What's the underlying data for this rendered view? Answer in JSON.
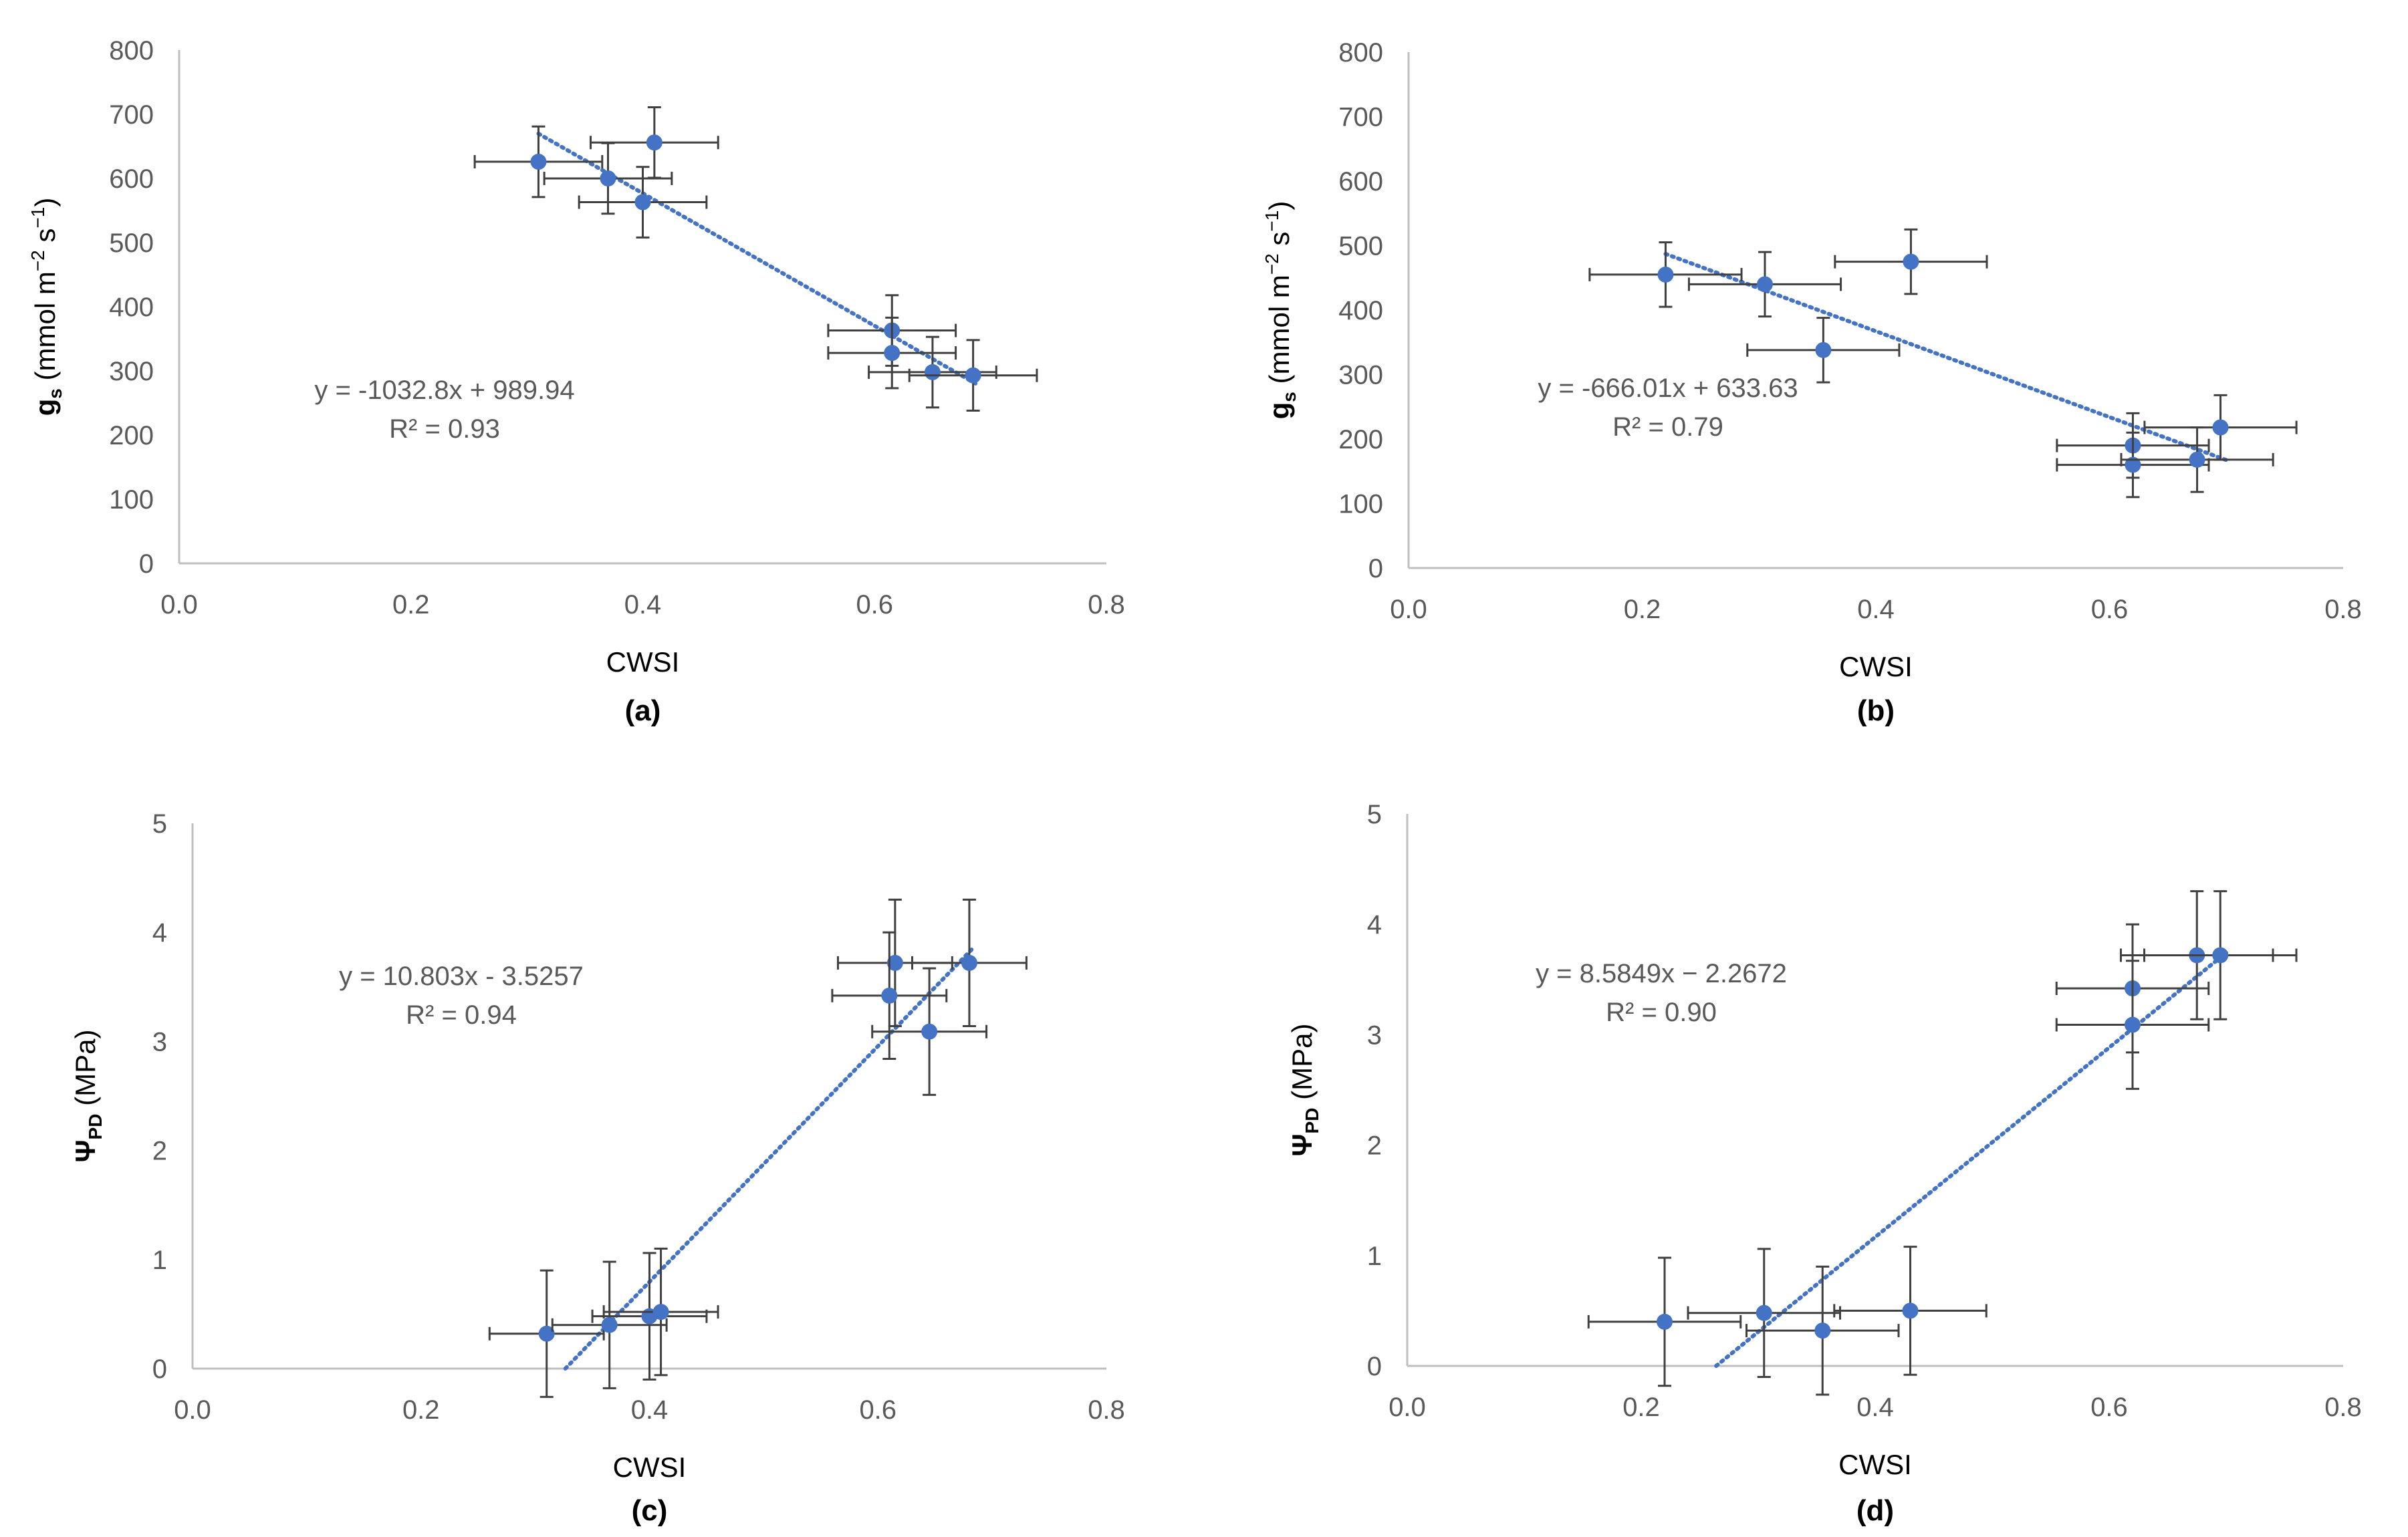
{
  "chart_data": [
    {
      "type": "scatter",
      "panel_label": "(a)",
      "xlabel": "CWSI",
      "ylabel": {
        "main": "g",
        "sub": "s",
        "units_open": " (mmol m",
        "units_exp1": "−2",
        "units_mid": " s",
        "units_exp2": "−1",
        "units_close": ")"
      },
      "xlim": [
        0.0,
        0.8
      ],
      "ylim": [
        0,
        800
      ],
      "xticks": [
        "0.0",
        "0.2",
        "0.4",
        "0.6",
        "0.8"
      ],
      "yticks": [
        "0",
        "100",
        "200",
        "300",
        "400",
        "500",
        "600",
        "700",
        "800"
      ],
      "points": [
        {
          "x": 0.31,
          "y": 626,
          "xerr": 0.055,
          "yerr": 55
        },
        {
          "x": 0.37,
          "y": 600,
          "xerr": 0.055,
          "yerr": 55
        },
        {
          "x": 0.41,
          "y": 656,
          "xerr": 0.055,
          "yerr": 55
        },
        {
          "x": 0.4,
          "y": 563,
          "xerr": 0.055,
          "yerr": 55
        },
        {
          "x": 0.615,
          "y": 363,
          "xerr": 0.055,
          "yerr": 55
        },
        {
          "x": 0.615,
          "y": 328,
          "xerr": 0.055,
          "yerr": 55
        },
        {
          "x": 0.65,
          "y": 298,
          "xerr": 0.055,
          "yerr": 55
        },
        {
          "x": 0.685,
          "y": 293,
          "xerr": 0.055,
          "yerr": 55
        }
      ],
      "trendline": {
        "slope": -1032.8,
        "intercept": 989.94,
        "x_from": 0.31,
        "x_to": 0.69
      },
      "equation": "y = -1032.8x + 989.94",
      "r2": "R² = 0.93"
    },
    {
      "type": "scatter",
      "panel_label": "(b)",
      "xlabel": "CWSI",
      "ylabel": {
        "main": "g",
        "sub": "s",
        "units_open": " (mmol m",
        "units_exp1": "−2",
        "units_mid": " s",
        "units_exp2": "−1",
        "units_close": ")"
      },
      "xlim": [
        0.0,
        0.8
      ],
      "ylim": [
        0,
        800
      ],
      "xticks": [
        "0.0",
        "0.2",
        "0.4",
        "0.6",
        "0.8"
      ],
      "yticks": [
        "0",
        "100",
        "200",
        "300",
        "400",
        "500",
        "600",
        "700",
        "800"
      ],
      "points": [
        {
          "x": 0.22,
          "y": 455,
          "xerr": 0.065,
          "yerr": 50
        },
        {
          "x": 0.305,
          "y": 440,
          "xerr": 0.065,
          "yerr": 50
        },
        {
          "x": 0.43,
          "y": 475,
          "xerr": 0.065,
          "yerr": 50
        },
        {
          "x": 0.355,
          "y": 338,
          "xerr": 0.065,
          "yerr": 50
        },
        {
          "x": 0.62,
          "y": 190,
          "xerr": 0.065,
          "yerr": 50
        },
        {
          "x": 0.62,
          "y": 160,
          "xerr": 0.065,
          "yerr": 50
        },
        {
          "x": 0.675,
          "y": 168,
          "xerr": 0.065,
          "yerr": 50
        },
        {
          "x": 0.695,
          "y": 218,
          "xerr": 0.065,
          "yerr": 50
        }
      ],
      "trendline": {
        "slope": -666.01,
        "intercept": 633.63,
        "x_from": 0.22,
        "x_to": 0.7
      },
      "equation": "y = -666.01x + 633.63",
      "r2": "R² = 0.79"
    },
    {
      "type": "scatter",
      "panel_label": "(c)",
      "xlabel": "CWSI",
      "ylabel": {
        "main": "Ψ",
        "sub": "PD",
        "units_open": " (MPa)"
      },
      "xlim": [
        0.0,
        0.8
      ],
      "ylim": [
        0,
        5
      ],
      "xticks": [
        "0.0",
        "0.2",
        "0.4",
        "0.6",
        "0.8"
      ],
      "yticks": [
        "0",
        "1",
        "2",
        "3",
        "4",
        "5"
      ],
      "points": [
        {
          "x": 0.31,
          "y": 0.32,
          "xerr": 0.05,
          "yerr": 0.58
        },
        {
          "x": 0.365,
          "y": 0.4,
          "xerr": 0.05,
          "yerr": 0.58
        },
        {
          "x": 0.4,
          "y": 0.48,
          "xerr": 0.05,
          "yerr": 0.58
        },
        {
          "x": 0.41,
          "y": 0.52,
          "xerr": 0.05,
          "yerr": 0.58
        },
        {
          "x": 0.615,
          "y": 3.72,
          "xerr": 0.05,
          "yerr": 0.58
        },
        {
          "x": 0.61,
          "y": 3.42,
          "xerr": 0.05,
          "yerr": 0.58
        },
        {
          "x": 0.645,
          "y": 3.09,
          "xerr": 0.05,
          "yerr": 0.58
        },
        {
          "x": 0.68,
          "y": 3.72,
          "xerr": 0.05,
          "yerr": 0.58
        }
      ],
      "trendline": {
        "slope": 10.803,
        "intercept": -3.5257,
        "x_from": 0.3264,
        "x_to": 0.683
      },
      "equation": "y = 10.803x - 3.5257",
      "r2": "R² = 0.94"
    },
    {
      "type": "scatter",
      "panel_label": "(d)",
      "xlabel": "CWSI",
      "ylabel": {
        "main": "Ψ",
        "sub": "PD",
        "units_open": " (MPa)"
      },
      "xlim": [
        0.0,
        0.8
      ],
      "ylim": [
        0,
        5
      ],
      "xticks": [
        "0.0",
        "0.2",
        "0.4",
        "0.6",
        "0.8"
      ],
      "yticks": [
        "0",
        "1",
        "2",
        "3",
        "4",
        "5"
      ],
      "points": [
        {
          "x": 0.22,
          "y": 0.4,
          "xerr": 0.065,
          "yerr": 0.58
        },
        {
          "x": 0.305,
          "y": 0.48,
          "xerr": 0.065,
          "yerr": 0.58
        },
        {
          "x": 0.355,
          "y": 0.32,
          "xerr": 0.065,
          "yerr": 0.58
        },
        {
          "x": 0.43,
          "y": 0.5,
          "xerr": 0.065,
          "yerr": 0.58
        },
        {
          "x": 0.62,
          "y": 3.42,
          "xerr": 0.065,
          "yerr": 0.58
        },
        {
          "x": 0.62,
          "y": 3.09,
          "xerr": 0.065,
          "yerr": 0.58
        },
        {
          "x": 0.675,
          "y": 3.72,
          "xerr": 0.065,
          "yerr": 0.58
        },
        {
          "x": 0.695,
          "y": 3.72,
          "xerr": 0.065,
          "yerr": 0.58
        }
      ],
      "trendline": {
        "slope": 8.5849,
        "intercept": -2.2672,
        "x_from": 0.2641,
        "x_to": 0.7
      },
      "equation": "y = 8.5849x − 2.2672",
      "r2": "R² = 0.90"
    }
  ],
  "colors": {
    "marker": "#4472C4",
    "trendline": "#4472C4",
    "errorbar": "#404040",
    "axis": "#BFBFBF"
  }
}
